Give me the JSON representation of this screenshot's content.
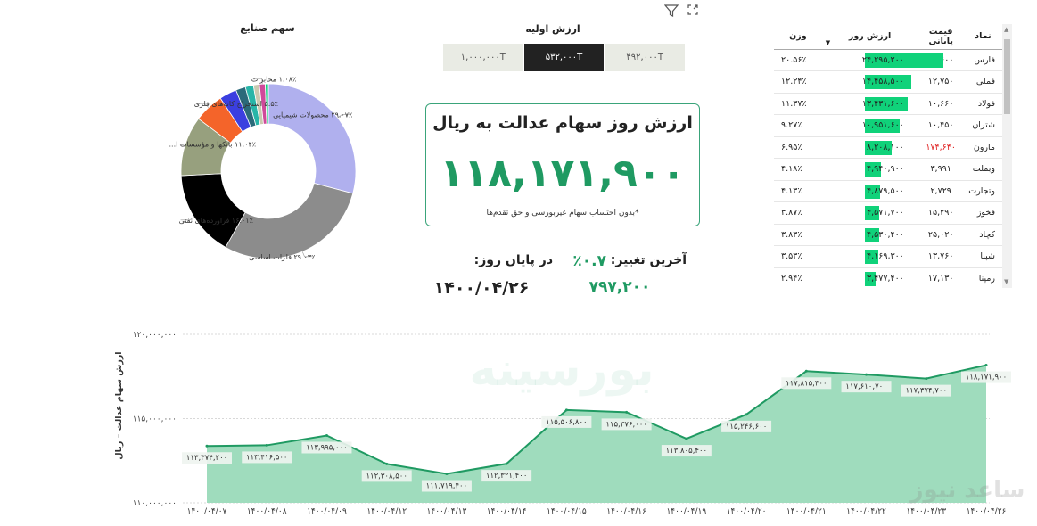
{
  "toolbar": {
    "filter_icon": "filter-icon",
    "expand_icon": "expand-icon"
  },
  "pie": {
    "title": "سهم صنایع",
    "slices": [
      {
        "name": "محصولات شیمیایی",
        "pct_label": "۲۹.۰۷٪",
        "value": 29.07,
        "color": "#b0b0ee"
      },
      {
        "name": "فلزات اساسی",
        "pct_label": "۲۹.۰۳٪",
        "value": 29.03,
        "color": "#8c8c8c"
      },
      {
        "name": "فراورده‌های نفتی",
        "pct_label": "۱۶.۰۱٪",
        "value": 16.01,
        "color": "#000000"
      },
      {
        "name": "بانکها و مؤسسات ا...",
        "pct_label": "۱۱.۰۴٪",
        "value": 11.04,
        "color": "#97a07e"
      },
      {
        "name": "استخراج کانه‌های فلزی",
        "pct_label": "۵.۵٪",
        "value": 5.5,
        "color": "#f4642a"
      },
      {
        "name": "",
        "pct_label": "",
        "value": 3.2,
        "color": "#3b3fe0"
      },
      {
        "name": "",
        "pct_label": "",
        "value": 1.8,
        "color": "#2b6a7a"
      },
      {
        "name": "",
        "pct_label": "",
        "value": 1.5,
        "color": "#27b5a8"
      },
      {
        "name": "",
        "pct_label": "",
        "value": 1.1,
        "color": "#c9c9b0"
      },
      {
        "name": "مخابرات",
        "pct_label": "۱.۰۸٪",
        "value": 1.08,
        "color": "#d04a9a"
      },
      {
        "name": "",
        "pct_label": "",
        "value": 0.57,
        "color": "#10d27a"
      }
    ]
  },
  "initial_value": {
    "title": "ارزش اولیه",
    "options": [
      "۱,۰۰۰,۰۰۰T",
      "۵۳۲,۰۰۰T",
      "۴۹۲,۰۰۰T"
    ],
    "selected_index": 1
  },
  "headline": {
    "title": "ارزش روز سهام عدالت به ریال",
    "value": "۱۱۸,۱۷۱,۹۰۰",
    "note": "*بدون احتساب سهام غیربورسی و حق تقدم‌ها"
  },
  "summary": {
    "last_change_label": "آخرین تغییر:",
    "last_change_value": "٪۰.۷",
    "end_of_day_label": "در پایان روز:",
    "end_of_day_value": "۷۹۷,۲۰۰",
    "date_value": "۱۴۰۰/۰۴/۲۶"
  },
  "table": {
    "headers": [
      "نماد",
      "قیمت پایانی",
      "ارزش روز",
      "وزن"
    ],
    "max_value": 24295200,
    "rows": [
      {
        "symbol": "فارس",
        "price": "۱۰,۶۰۰",
        "value": "۲۴,۲۹۵,۲۰۰",
        "num": 24295200,
        "weight": "۲۰.۵۶٪",
        "neg": false
      },
      {
        "symbol": "فملی",
        "price": "۱۲,۷۵۰",
        "value": "۱۴,۴۵۸,۵۰۰",
        "num": 14458500,
        "weight": "۱۲.۲۴٪",
        "neg": false
      },
      {
        "symbol": "فولاد",
        "price": "۱۰,۶۶۰",
        "value": "۱۳,۴۳۱,۶۰۰",
        "num": 13431600,
        "weight": "۱۱.۳۷٪",
        "neg": false
      },
      {
        "symbol": "شتران",
        "price": "۱۰,۴۵۰",
        "value": "۱۰,۹۵۱,۶۰۰",
        "num": 10951600,
        "weight": "۹.۲۷٪",
        "neg": false
      },
      {
        "symbol": "مارون",
        "price": "۱۷۴,۶۴۰",
        "value": "۸,۲۰۸,۱۰۰",
        "num": 8208100,
        "weight": "۶.۹۵٪",
        "neg": true
      },
      {
        "symbol": "وبملت",
        "price": "۳,۹۹۱",
        "value": "۴,۹۴۰,۹۰۰",
        "num": 4940900,
        "weight": "۴.۱۸٪",
        "neg": false
      },
      {
        "symbol": "وتجارت",
        "price": "۲,۷۲۹",
        "value": "۴,۸۷۹,۵۰۰",
        "num": 4879500,
        "weight": "۴.۱۳٪",
        "neg": false
      },
      {
        "symbol": "فخوز",
        "price": "۱۵,۲۹۰",
        "value": "۴,۵۷۱,۷۰۰",
        "num": 4571700,
        "weight": "۳.۸۷٪",
        "neg": false
      },
      {
        "symbol": "کچاد",
        "price": "۲۵,۰۲۰",
        "value": "۴,۵۳۰,۴۰۰",
        "num": 4530400,
        "weight": "۳.۸۳٪",
        "neg": false
      },
      {
        "symbol": "شپنا",
        "price": "۱۳,۷۶۰",
        "value": "۴,۱۶۹,۳۰۰",
        "num": 4169300,
        "weight": "۳.۵۳٪",
        "neg": false
      },
      {
        "symbol": "رمپنا",
        "price": "۱۷,۱۳۰",
        "value": "۳,۴۷۷,۴۰۰",
        "num": 3477400,
        "weight": "۲.۹۴٪",
        "neg": false
      }
    ]
  },
  "chart_data": {
    "type": "area",
    "ylabel": "ارزش سهام عدالت – ریال",
    "ylim": [
      110000000,
      120000000
    ],
    "yticks": [
      110000000,
      115000000,
      120000000
    ],
    "ytick_labels": [
      "۱۱۰,۰۰۰,۰۰۰",
      "۱۱۵,۰۰۰,۰۰۰",
      "۱۲۰,۰۰۰,۰۰۰"
    ],
    "categories": [
      "۱۴۰۰/۰۴/۰۷",
      "۱۴۰۰/۰۴/۰۸",
      "۱۴۰۰/۰۴/۰۹",
      "۱۴۰۰/۰۴/۱۲",
      "۱۴۰۰/۰۴/۱۳",
      "۱۴۰۰/۰۴/۱۴",
      "۱۴۰۰/۰۴/۱۵",
      "۱۴۰۰/۰۴/۱۶",
      "۱۴۰۰/۰۴/۱۹",
      "۱۴۰۰/۰۴/۲۰",
      "۱۴۰۰/۰۴/۲۱",
      "۱۴۰۰/۰۴/۲۲",
      "۱۴۰۰/۰۴/۲۳",
      "۱۴۰۰/۰۴/۲۶"
    ],
    "values": [
      113374200,
      113416500,
      113995000,
      112308500,
      111719400,
      112321400,
      115506800,
      115376000,
      113805400,
      115246600,
      117815400,
      117610700,
      117374700,
      118171900
    ],
    "data_labels": [
      "۱۱۳,۳۷۴,۲۰۰",
      "۱۱۳,۴۱۶,۵۰۰",
      "۱۱۳,۹۹۵,۰۰۰",
      "۱۱۲,۳۰۸,۵۰۰",
      "۱۱۱,۷۱۹,۴۰۰",
      "۱۱۲,۳۲۱,۴۰۰",
      "۱۱۵,۵۰۶,۸۰۰",
      "۱۱۵,۳۷۶,۰۰۰",
      "۱۱۳,۸۰۵,۴۰۰",
      "۱۱۵,۲۴۶,۶۰۰",
      "۱۱۷,۸۱۵,۴۰۰",
      "۱۱۷,۶۱۰,۷۰۰",
      "۱۱۷,۳۷۴,۷۰۰",
      "۱۱۸,۱۷۱,۹۰۰"
    ],
    "colors": {
      "fill": "#9fdcbd",
      "line": "#1f9a62"
    }
  },
  "watermarks": {
    "chart": "بورسینه",
    "corner": "ساعد نیوز"
  }
}
